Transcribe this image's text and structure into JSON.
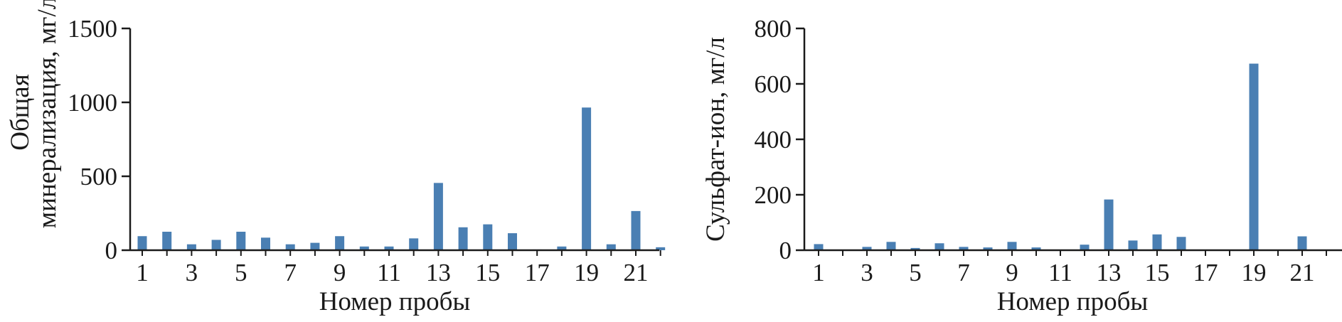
{
  "chart_data": [
    {
      "type": "bar",
      "title": "",
      "xlabel": "Номер пробы",
      "ylabel_lines": [
        "Общая",
        "минерализация, мг/л"
      ],
      "ylim": [
        0,
        1500
      ],
      "yticks": [
        0,
        500,
        1000,
        1500
      ],
      "categories": [
        1,
        2,
        3,
        4,
        5,
        6,
        7,
        8,
        9,
        10,
        11,
        12,
        13,
        14,
        15,
        16,
        17,
        18,
        19,
        20,
        21,
        22
      ],
      "xtick_labels": [
        "1",
        "3",
        "5",
        "7",
        "9",
        "11",
        "13",
        "15",
        "17",
        "19",
        "21"
      ],
      "values": [
        95,
        125,
        40,
        70,
        125,
        85,
        40,
        50,
        95,
        25,
        25,
        80,
        455,
        155,
        175,
        115,
        5,
        25,
        965,
        40,
        265,
        20
      ],
      "color": "#4a7fb3"
    },
    {
      "type": "bar",
      "title": "",
      "xlabel": "Номер пробы",
      "ylabel_lines": [
        "Сульфат-ион, мг/л"
      ],
      "ylim": [
        0,
        800
      ],
      "yticks": [
        0,
        200,
        400,
        600,
        800
      ],
      "categories": [
        1,
        2,
        3,
        4,
        5,
        6,
        7,
        8,
        9,
        10,
        11,
        12,
        13,
        14,
        15,
        16,
        17,
        18,
        19,
        20,
        21,
        22
      ],
      "xtick_labels": [
        "1",
        "3",
        "5",
        "7",
        "9",
        "11",
        "13",
        "15",
        "17",
        "19",
        "21"
      ],
      "values": [
        22,
        0,
        12,
        30,
        8,
        25,
        12,
        10,
        30,
        10,
        2,
        20,
        183,
        35,
        57,
        48,
        0,
        2,
        673,
        0,
        50,
        0
      ],
      "color": "#4a7fb3"
    }
  ]
}
